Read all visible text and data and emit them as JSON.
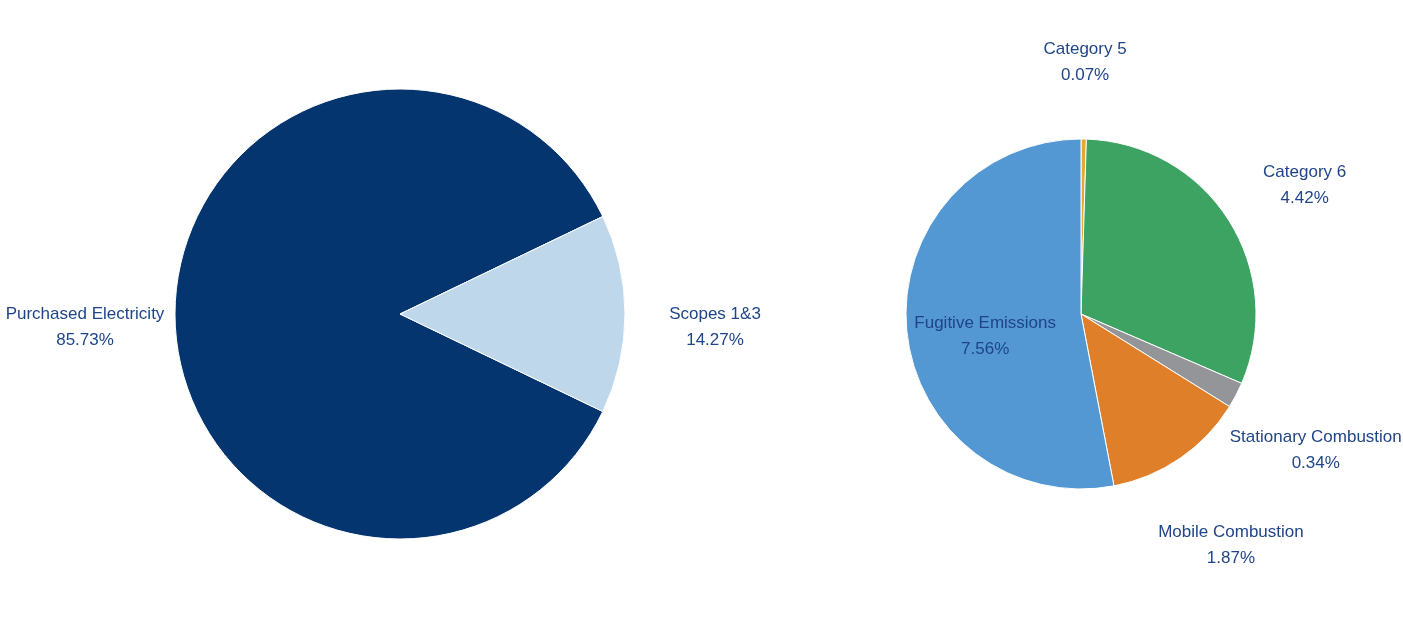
{
  "chart_data": [
    {
      "type": "pie",
      "categories": [
        "Purchased Electricity",
        "Scopes 1&3"
      ],
      "values": [
        85.73,
        14.27
      ],
      "colors": [
        "#04356f",
        "#bfd7ea"
      ],
      "value_labels": [
        "85.73%",
        "14.27%"
      ],
      "legend": false
    },
    {
      "type": "pie",
      "categories": [
        "Category 5",
        "Category 6",
        "Stationary Combustion",
        "Mobile Combustion",
        "Fugitive Emissions"
      ],
      "values": [
        0.07,
        4.42,
        0.34,
        1.87,
        7.56
      ],
      "colors": [
        "#e8a830",
        "#3da363",
        "#939598",
        "#e07f2a",
        "#5398d3"
      ],
      "value_labels": [
        "0.07%",
        "4.42%",
        "0.34%",
        "1.87%",
        "7.56%"
      ],
      "legend": false
    }
  ]
}
